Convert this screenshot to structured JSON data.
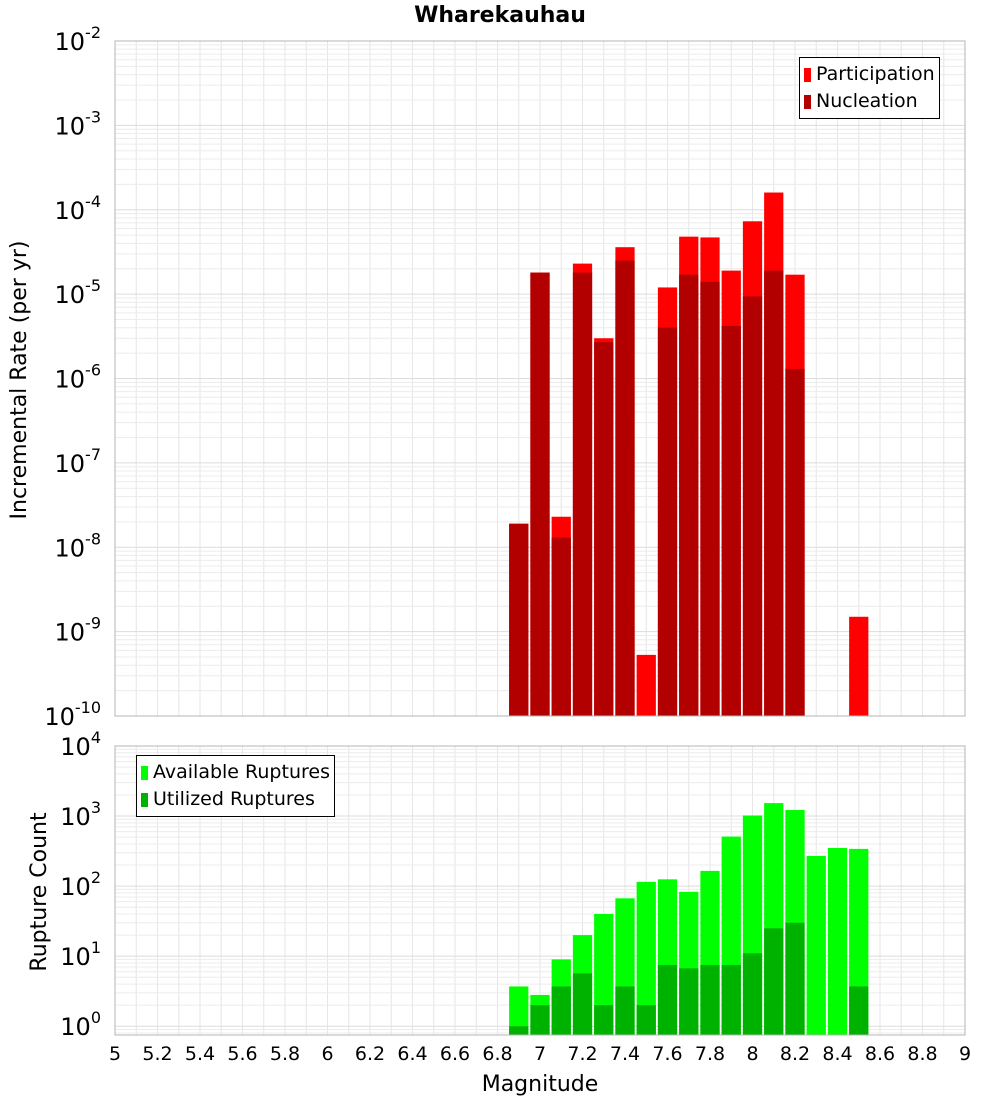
{
  "chart_data": [
    {
      "type": "bar",
      "title": "Wharekauhau",
      "ylabel": "Incremental Rate (per yr)",
      "yscale": "log",
      "ylim": [
        1e-10,
        0.01
      ],
      "xlim": [
        5,
        9
      ],
      "legend_placement": "top-right",
      "grid": true,
      "y_tick_labels": [
        {
          "base": "10",
          "exp": "-10",
          "value": 1e-10
        },
        {
          "base": "10",
          "exp": "-9",
          "value": 1e-09
        },
        {
          "base": "10",
          "exp": "-8",
          "value": 1e-08
        },
        {
          "base": "10",
          "exp": "-7",
          "value": 1e-07
        },
        {
          "base": "10",
          "exp": "-6",
          "value": 1e-06
        },
        {
          "base": "10",
          "exp": "-5",
          "value": 1e-05
        },
        {
          "base": "10",
          "exp": "-4",
          "value": 0.0001
        },
        {
          "base": "10",
          "exp": "-3",
          "value": 0.001
        },
        {
          "base": "10",
          "exp": "-2",
          "value": 0.01
        }
      ],
      "x": [
        6.9,
        7.0,
        7.1,
        7.2,
        7.3,
        7.4,
        7.5,
        7.6,
        7.7,
        7.8,
        7.9,
        8.0,
        8.1,
        8.2,
        8.5
      ],
      "series": [
        {
          "name": "Participation",
          "color": "#ff0000",
          "values": [
            1.9e-08,
            1.8e-05,
            2.3e-08,
            2.3e-05,
            3e-06,
            3.6e-05,
            5.3e-10,
            1.2e-05,
            4.8e-05,
            4.7e-05,
            1.9e-05,
            7.3e-05,
            0.00016,
            1.7e-05,
            1.5e-09
          ]
        },
        {
          "name": "Nucleation",
          "color": "#b20000",
          "values": [
            1.9e-08,
            1.8e-05,
            1.3e-08,
            1.8e-05,
            2.7e-06,
            2.5e-05,
            null,
            4e-06,
            1.7e-05,
            1.4e-05,
            4.2e-06,
            9.4e-06,
            1.9e-05,
            1.3e-06,
            null
          ]
        }
      ]
    },
    {
      "type": "bar",
      "title": "",
      "xlabel": "Magnitude",
      "ylabel": "Rupture Count",
      "yscale": "log",
      "ylim": [
        0.75,
        10000
      ],
      "xlim": [
        5,
        9
      ],
      "legend_placement": "top-left",
      "grid": true,
      "y_tick_labels": [
        {
          "base": "10",
          "exp": "0",
          "value": 1
        },
        {
          "base": "10",
          "exp": "1",
          "value": 10
        },
        {
          "base": "10",
          "exp": "2",
          "value": 100
        },
        {
          "base": "10",
          "exp": "3",
          "value": 1000
        },
        {
          "base": "10",
          "exp": "4",
          "value": 10000
        }
      ],
      "x_tick_labels": [
        "5",
        "5.2",
        "5.4",
        "5.6",
        "5.8",
        "6",
        "6.2",
        "6.4",
        "6.6",
        "6.8",
        "7",
        "7.2",
        "7.4",
        "7.6",
        "7.8",
        "8",
        "8.2",
        "8.4",
        "8.6",
        "8.8",
        "9"
      ],
      "x": [
        6.9,
        7.0,
        7.1,
        7.2,
        7.3,
        7.4,
        7.5,
        7.6,
        7.7,
        7.8,
        7.9,
        8.0,
        8.1,
        8.2,
        8.3,
        8.4,
        8.5
      ],
      "series": [
        {
          "name": "Available Ruptures",
          "color": "#00ff00",
          "values": [
            3.7,
            2.8,
            9,
            20,
            40,
            67,
            115,
            125,
            83,
            165,
            510,
            1020,
            1530,
            1220,
            270,
            350,
            340
          ]
        },
        {
          "name": "Utilized Ruptures",
          "color": "#00b200",
          "values": [
            1,
            2,
            3.7,
            5.7,
            2,
            3.7,
            2,
            7.5,
            6.7,
            7.5,
            7.5,
            11,
            25,
            30,
            null,
            null,
            3.7
          ]
        }
      ]
    }
  ]
}
